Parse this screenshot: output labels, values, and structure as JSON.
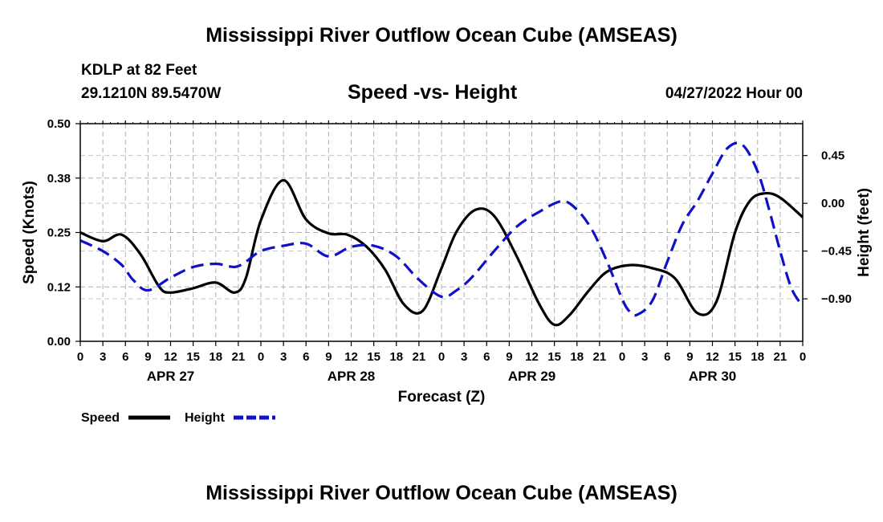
{
  "page": {
    "main_title": "Mississippi River Outflow Ocean Cube (AMSEAS)",
    "station": "KDLP at 82 Feet",
    "coords": "29.1210N  89.5470W",
    "subtitle": "Speed -vs- Height",
    "date": "04/27/2022 Hour 00",
    "bottom_title": "Mississippi River Outflow Ocean Cube (AMSEAS)"
  },
  "chart_data": {
    "type": "line",
    "xlabel": "Forecast (Z)",
    "x_tick_labels": [
      "0",
      "3",
      "6",
      "9",
      "12",
      "15",
      "18",
      "21",
      "0",
      "3",
      "6",
      "9",
      "12",
      "15",
      "18",
      "21",
      "0",
      "3",
      "6",
      "9",
      "12",
      "15",
      "18",
      "21",
      "0",
      "3",
      "6",
      "9",
      "12",
      "15",
      "18",
      "21",
      "0"
    ],
    "date_labels": [
      {
        "label": "APR 27",
        "hour": 12
      },
      {
        "label": "APR 28",
        "hour": 36
      },
      {
        "label": "APR 29",
        "hour": 60
      },
      {
        "label": "APR 30",
        "hour": 84
      }
    ],
    "x_range": [
      0,
      96
    ],
    "y_left": {
      "label": "Speed (Knots)",
      "range": [
        0,
        0.5
      ],
      "ticks": [
        "0.00",
        "0.12",
        "0.25",
        "0.38",
        "0.50"
      ],
      "tick_values": [
        0,
        0.125,
        0.25,
        0.375,
        0.5
      ]
    },
    "y_right": {
      "label": "Height (feet)",
      "range": [
        -1.3,
        0.75
      ],
      "ticks": [
        "0.45",
        "0.00",
        "−0.45",
        "−0.90"
      ],
      "tick_values": [
        0.45,
        0,
        -0.45,
        -0.9
      ]
    },
    "series": [
      {
        "name": "Speed",
        "axis": "left",
        "color": "#000000",
        "dash": "solid",
        "x": [
          0,
          3,
          5.5,
          8,
          10.5,
          12,
          15,
          18,
          20.5,
          22,
          24,
          27,
          30,
          33,
          35.5,
          38,
          40.5,
          43,
          45.5,
          48,
          50,
          52.5,
          55,
          58,
          61,
          63,
          65,
          67.5,
          70,
          73,
          76,
          79,
          82,
          84.5,
          87,
          89,
          91,
          93,
          96
        ],
        "y": [
          0.25,
          0.23,
          0.245,
          0.2,
          0.125,
          0.112,
          0.122,
          0.135,
          0.112,
          0.145,
          0.278,
          0.37,
          0.28,
          0.248,
          0.245,
          0.218,
          0.165,
          0.085,
          0.07,
          0.168,
          0.252,
          0.302,
          0.288,
          0.195,
          0.085,
          0.038,
          0.06,
          0.115,
          0.16,
          0.175,
          0.168,
          0.145,
          0.065,
          0.09,
          0.25,
          0.323,
          0.34,
          0.33,
          0.285
        ]
      },
      {
        "name": "Height",
        "axis": "right",
        "color": "#1010c8",
        "dash": "dashed",
        "x": [
          0,
          3,
          5.5,
          7,
          9,
          12,
          15,
          18,
          20.5,
          22,
          24,
          27,
          30,
          33,
          36,
          39,
          42,
          45,
          48,
          50,
          52,
          55,
          58,
          61,
          64,
          66,
          68,
          70,
          72,
          73,
          74,
          76,
          78,
          80,
          82,
          84,
          86,
          88,
          90,
          91.5,
          93,
          94.5,
          96
        ],
        "y": [
          -0.35,
          -0.45,
          -0.58,
          -0.72,
          -0.82,
          -0.7,
          -0.6,
          -0.57,
          -0.6,
          -0.55,
          -0.45,
          -0.4,
          -0.38,
          -0.5,
          -0.41,
          -0.4,
          -0.5,
          -0.72,
          -0.88,
          -0.82,
          -0.7,
          -0.45,
          -0.22,
          -0.08,
          0.02,
          -0.06,
          -0.25,
          -0.55,
          -0.9,
          -1.02,
          -1.05,
          -0.92,
          -0.55,
          -0.2,
          0.02,
          0.28,
          0.52,
          0.55,
          0.3,
          -0.05,
          -0.45,
          -0.8,
          -0.97
        ]
      }
    ]
  },
  "legend": {
    "speed_label": "Speed",
    "height_label": "Height"
  }
}
